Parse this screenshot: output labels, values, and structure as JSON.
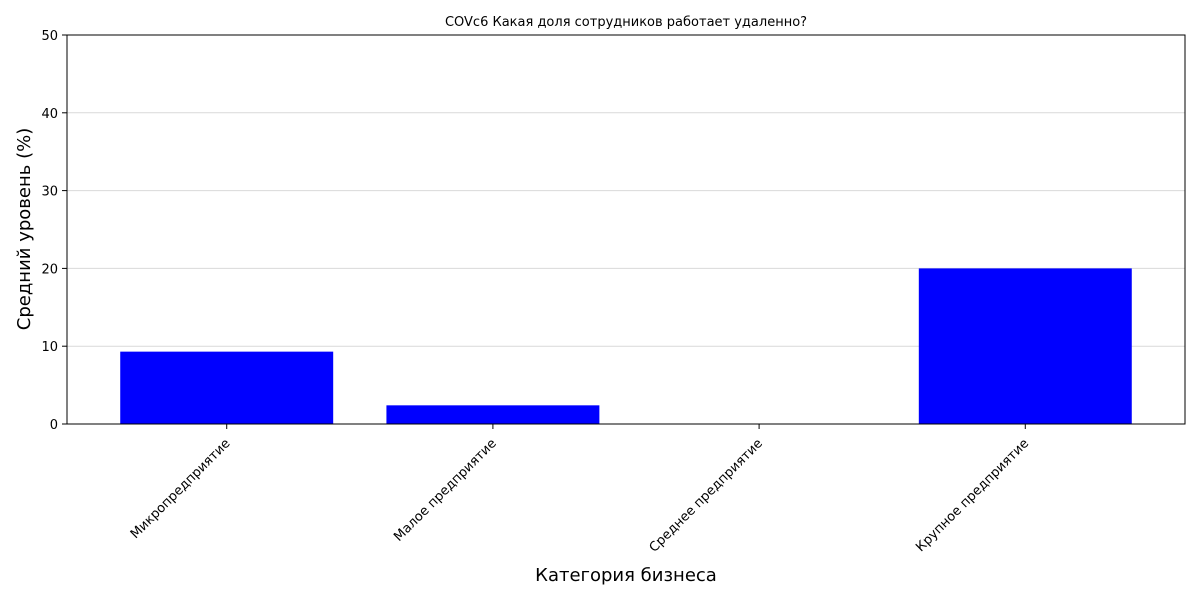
{
  "chart_data": {
    "type": "bar",
    "title": "COVc6 Какая доля сотрудников работает удаленно?",
    "xlabel": "Категория бизнеса",
    "ylabel": "Средний уровень (%)",
    "categories": [
      "Микропредприятие",
      "Малое предприятие",
      "Среднее предприятие",
      "Крупное предприятие"
    ],
    "values": [
      9.3,
      2.4,
      0,
      20.0
    ],
    "ylim": [
      0,
      50
    ],
    "yticks": [
      "0",
      "10",
      "20",
      "30",
      "40",
      "50"
    ],
    "grid": "horizontal",
    "bar_color": "#0000ff"
  }
}
